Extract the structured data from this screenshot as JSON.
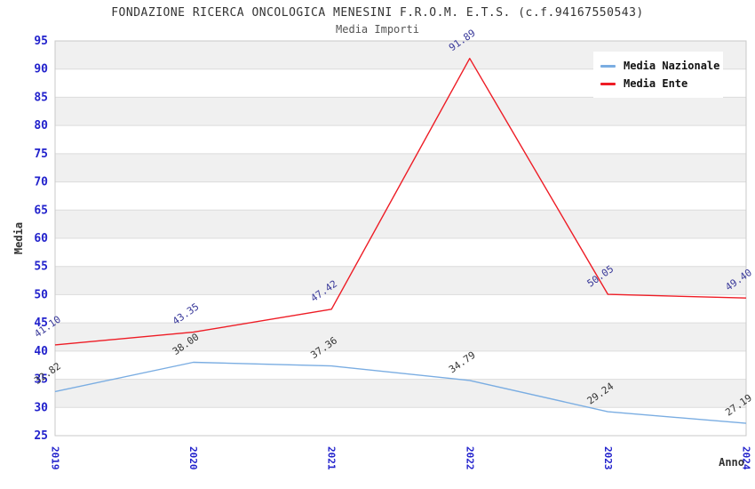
{
  "header": {
    "title": "FONDAZIONE RICERCA ONCOLOGICA MENESINI F.R.O.M. E.T.S. (c.f.94167550543)",
    "subtitle": "Media Importi"
  },
  "legend": {
    "items": [
      {
        "label": "Media Nazionale",
        "color": "#7aade2"
      },
      {
        "label": "Media Ente",
        "color": "#ee1c25"
      }
    ]
  },
  "chart_data": {
    "type": "line",
    "title": "FONDAZIONE RICERCA ONCOLOGICA MENESINI F.R.O.M. E.T.S. (c.f.94167550543)",
    "subtitle": "Media Importi",
    "xlabel": "Anno",
    "ylabel": "Media",
    "categories": [
      "2019",
      "2020",
      "2021",
      "2022",
      "2023",
      "2024"
    ],
    "series": [
      {
        "name": "Media Nazionale",
        "color": "#7aade2",
        "label_color": "#333333",
        "values": [
          32.82,
          38.0,
          37.36,
          34.79,
          29.24,
          27.19
        ]
      },
      {
        "name": "Media Ente",
        "color": "#ee1c25",
        "label_color": "#383899",
        "values": [
          41.1,
          43.35,
          47.42,
          91.89,
          50.05,
          49.4
        ]
      }
    ],
    "ylim": [
      25,
      95
    ],
    "ytick_step": 5,
    "grid": "horizontal-bands",
    "legend_position": "top-right",
    "band_color": "#f0f0f0",
    "gridline_color": "#dcdcdc",
    "border_color": "#c9c9c9",
    "tick_label_color": "#2222cc",
    "axis_title_color": "#333333"
  }
}
